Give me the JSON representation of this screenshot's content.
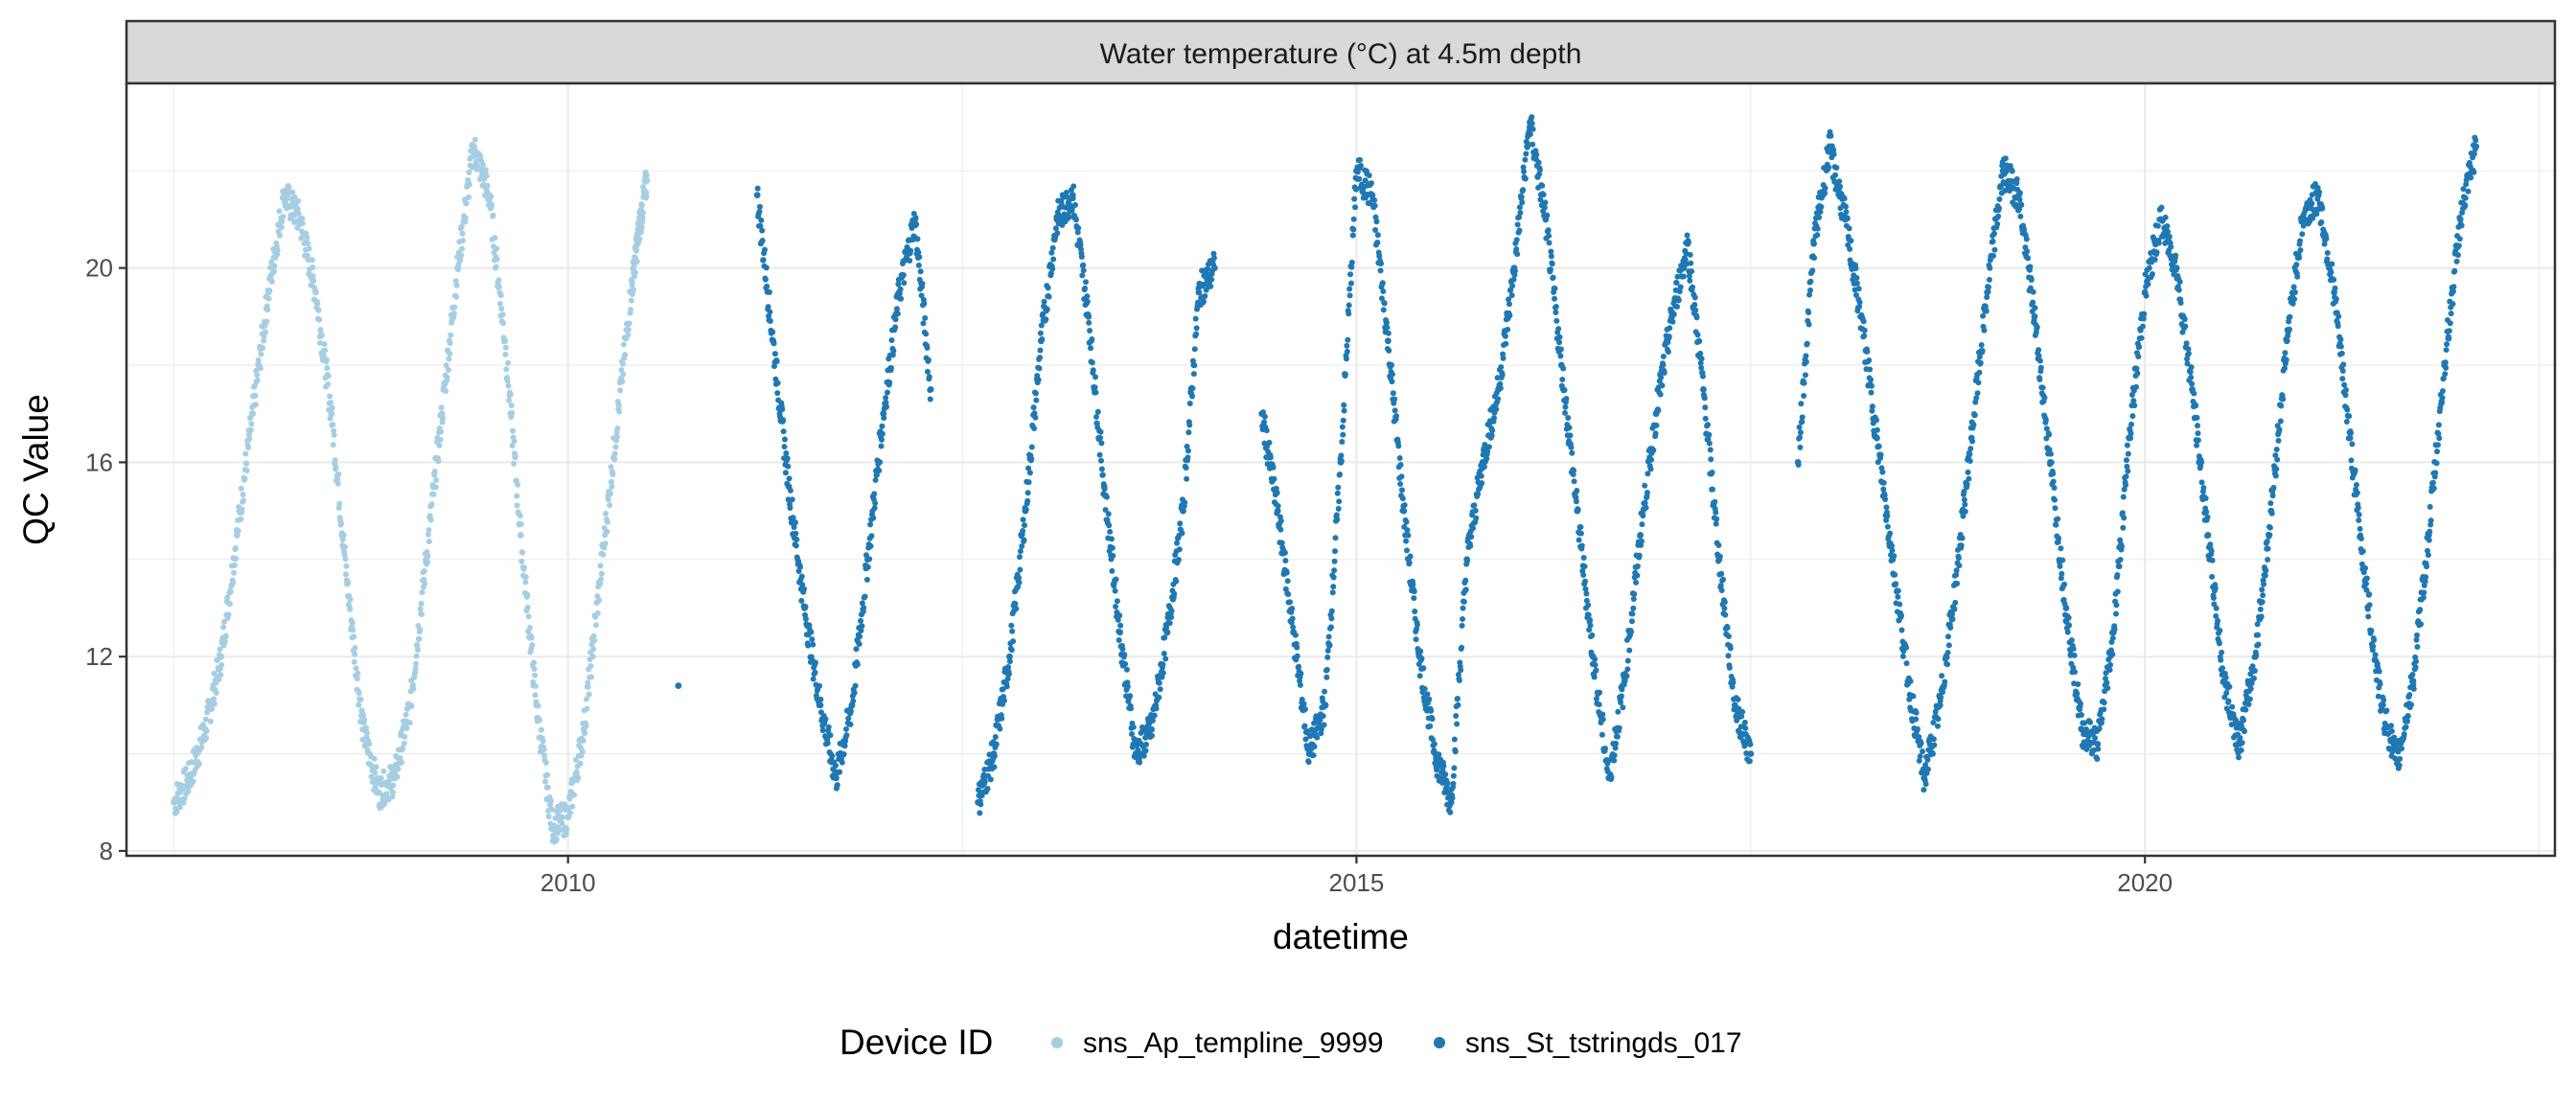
{
  "chart_data": {
    "type": "scatter",
    "facet_title": "Water temperature (°C) at 4.5m depth",
    "xlabel": "datetime",
    "ylabel": "QC Value",
    "xlim": [
      2007.2,
      2022.6
    ],
    "ylim": [
      7.9,
      23.8
    ],
    "x_ticks": [
      2010,
      2015,
      2020
    ],
    "y_ticks": [
      8,
      12,
      16,
      20
    ],
    "grid": true,
    "legend": {
      "title": "Device ID",
      "position": "bottom"
    },
    "series": [
      {
        "name": "sns_Ap_templine_9999",
        "color": "#a6cee3",
        "points": [
          [
            2007.5,
            9.0
          ],
          [
            2007.6,
            9.5
          ],
          [
            2007.7,
            10.5
          ],
          [
            2007.8,
            12.0
          ],
          [
            2007.9,
            14.5
          ],
          [
            2008.0,
            17.0
          ],
          [
            2008.1,
            19.5
          ],
          [
            2008.2,
            21.5
          ],
          [
            2008.3,
            21.0
          ],
          [
            2008.4,
            19.5
          ],
          [
            2008.5,
            17.0
          ],
          [
            2008.6,
            13.5
          ],
          [
            2008.7,
            10.5
          ],
          [
            2008.8,
            9.2
          ],
          [
            2008.9,
            9.5
          ],
          [
            2009.0,
            11.0
          ],
          [
            2009.1,
            14.0
          ],
          [
            2009.2,
            17.0
          ],
          [
            2009.3,
            20.0
          ],
          [
            2009.4,
            22.5
          ],
          [
            2009.5,
            21.5
          ],
          [
            2009.6,
            18.5
          ],
          [
            2009.7,
            14.5
          ],
          [
            2009.8,
            11.0
          ],
          [
            2009.9,
            8.5
          ],
          [
            2010.0,
            8.7
          ],
          [
            2010.1,
            10.5
          ],
          [
            2010.2,
            13.5
          ],
          [
            2010.3,
            16.5
          ],
          [
            2010.4,
            19.5
          ],
          [
            2010.45,
            20.8
          ],
          [
            2010.5,
            21.8
          ]
        ]
      },
      {
        "name": "sns_St_tstringds_017",
        "color": "#1f78b4",
        "points": [
          [
            2010.7,
            11.4
          ],
          [
            2011.2,
            21.5
          ],
          [
            2011.3,
            18.5
          ],
          [
            2011.4,
            15.5
          ],
          [
            2011.5,
            13.0
          ],
          [
            2011.6,
            11.0
          ],
          [
            2011.7,
            9.5
          ],
          [
            2011.8,
            11.0
          ],
          [
            2011.9,
            14.0
          ],
          [
            2012.0,
            17.0
          ],
          [
            2012.1,
            19.5
          ],
          [
            2012.2,
            21.0
          ],
          [
            2012.3,
            17.5
          ],
          [
            2012.6,
            9.0
          ],
          [
            2012.7,
            10.0
          ],
          [
            2012.8,
            12.0
          ],
          [
            2012.9,
            15.0
          ],
          [
            2013.0,
            18.5
          ],
          [
            2013.1,
            21.0
          ],
          [
            2013.2,
            21.5
          ],
          [
            2013.3,
            19.0
          ],
          [
            2013.4,
            15.5
          ],
          [
            2013.5,
            12.5
          ],
          [
            2013.6,
            10.0
          ],
          [
            2013.7,
            10.5
          ],
          [
            2013.8,
            12.5
          ],
          [
            2013.9,
            15.0
          ],
          [
            2014.0,
            19.5
          ],
          [
            2014.1,
            20.0
          ],
          [
            2014.4,
            17.0
          ],
          [
            2014.5,
            15.0
          ],
          [
            2014.6,
            12.5
          ],
          [
            2014.7,
            10.0
          ],
          [
            2014.8,
            11.0
          ],
          [
            2014.9,
            16.0
          ],
          [
            2015.0,
            22.0
          ],
          [
            2015.1,
            21.5
          ],
          [
            2015.2,
            18.5
          ],
          [
            2015.3,
            15.0
          ],
          [
            2015.4,
            12.0
          ],
          [
            2015.5,
            10.0
          ],
          [
            2015.6,
            9.0
          ],
          [
            2015.7,
            14.0
          ],
          [
            2015.8,
            16.0
          ],
          [
            2015.9,
            17.5
          ],
          [
            2016.0,
            20.0
          ],
          [
            2016.1,
            23.0
          ],
          [
            2016.2,
            21.0
          ],
          [
            2016.3,
            18.0
          ],
          [
            2016.4,
            15.0
          ],
          [
            2016.5,
            12.0
          ],
          [
            2016.6,
            9.5
          ],
          [
            2016.7,
            11.5
          ],
          [
            2016.8,
            14.5
          ],
          [
            2016.9,
            17.0
          ],
          [
            2017.0,
            19.0
          ],
          [
            2017.1,
            20.5
          ],
          [
            2017.2,
            17.5
          ],
          [
            2017.3,
            14.0
          ],
          [
            2017.4,
            11.0
          ],
          [
            2017.5,
            10.0
          ],
          [
            2017.8,
            16.0
          ],
          [
            2017.9,
            20.5
          ],
          [
            2018.0,
            22.5
          ],
          [
            2018.1,
            21.0
          ],
          [
            2018.2,
            19.0
          ],
          [
            2018.3,
            16.5
          ],
          [
            2018.4,
            14.0
          ],
          [
            2018.5,
            11.5
          ],
          [
            2018.6,
            9.5
          ],
          [
            2018.7,
            11.0
          ],
          [
            2018.8,
            13.5
          ],
          [
            2018.9,
            16.5
          ],
          [
            2019.0,
            19.5
          ],
          [
            2019.1,
            22.0
          ],
          [
            2019.2,
            21.5
          ],
          [
            2019.3,
            19.0
          ],
          [
            2019.4,
            16.0
          ],
          [
            2019.5,
            13.0
          ],
          [
            2019.6,
            10.5
          ],
          [
            2019.7,
            10.2
          ],
          [
            2019.8,
            12.5
          ],
          [
            2019.9,
            16.5
          ],
          [
            2020.0,
            19.5
          ],
          [
            2020.1,
            21.0
          ],
          [
            2020.2,
            20.0
          ],
          [
            2020.3,
            17.5
          ],
          [
            2020.4,
            14.5
          ],
          [
            2020.5,
            11.5
          ],
          [
            2020.6,
            10.2
          ],
          [
            2020.7,
            12.0
          ],
          [
            2020.8,
            15.0
          ],
          [
            2020.9,
            18.5
          ],
          [
            2021.0,
            21.0
          ],
          [
            2021.1,
            21.5
          ],
          [
            2021.2,
            19.5
          ],
          [
            2021.3,
            16.5
          ],
          [
            2021.4,
            13.5
          ],
          [
            2021.5,
            11.0
          ],
          [
            2021.6,
            9.8
          ],
          [
            2021.7,
            11.5
          ],
          [
            2021.8,
            14.5
          ],
          [
            2021.9,
            18.0
          ],
          [
            2022.0,
            21.0
          ],
          [
            2022.1,
            22.5
          ]
        ]
      }
    ]
  }
}
